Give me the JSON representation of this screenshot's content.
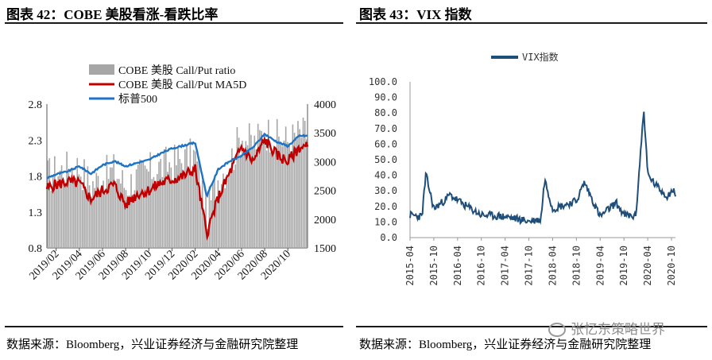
{
  "left_title": "图表 42：COBE 美股看涨-看跌比率",
  "right_title": "图表 43：VIX 指数",
  "left_source": "数据来源：Bloomberg，兴业证券经济与金融研究院整理",
  "right_source": "数据来源：Bloomberg，兴业证券经济与金融研究院整理",
  "watermark": "张忆东策略世界",
  "colors": {
    "bar": "#a6a6a6",
    "ma5d": "#c00000",
    "spx": "#1f73c4",
    "vix": "#1f4e79"
  },
  "chart_data": [
    {
      "type": "bar",
      "title": "图表 42：COBE 美股看涨-看跌比率",
      "legend": [
        "COBE 美股 Call/Put ratio",
        "COBE 美股 Call/Put MA5D",
        "标普500"
      ],
      "legend_position": "top-left",
      "x_ticks": [
        "2019/02",
        "2019/04",
        "2019/06",
        "2019/08",
        "2019/10",
        "2019/12",
        "2020/02",
        "2020/04",
        "2020/06",
        "2020/08",
        "2020/10"
      ],
      "y_left_ticks": [
        "0.8",
        "1.3",
        "1.8",
        "2.3",
        "2.8"
      ],
      "y_left_lim": [
        0.8,
        2.8
      ],
      "y_right_ticks": [
        "1500",
        "2000",
        "2500",
        "3000",
        "3500",
        "4000"
      ],
      "y_right_lim": [
        1500,
        4000
      ],
      "series": [
        {
          "name": "COBE 美股 Call/Put ratio",
          "type": "bar",
          "axis": "left",
          "x": [
            "2019/01",
            "2019/02",
            "2019/03",
            "2019/04",
            "2019/05",
            "2019/06",
            "2019/07",
            "2019/08",
            "2019/09",
            "2019/10",
            "2019/11",
            "2019/12",
            "2020/01",
            "2020/02",
            "2020/03",
            "2020/04",
            "2020/05",
            "2020/06",
            "2020/07",
            "2020/08",
            "2020/09",
            "2020/10",
            "2020/11"
          ],
          "values": [
            1.7,
            1.78,
            1.82,
            1.85,
            1.6,
            1.7,
            1.8,
            1.58,
            1.7,
            1.78,
            1.85,
            1.9,
            1.95,
            2.0,
            1.2,
            1.7,
            1.9,
            2.3,
            2.15,
            2.35,
            2.25,
            2.2,
            2.3
          ]
        },
        {
          "name": "COBE 美股 Call/Put MA5D",
          "type": "line",
          "axis": "left",
          "x": [
            "2019/01",
            "2019/02",
            "2019/03",
            "2019/04",
            "2019/05",
            "2019/06",
            "2019/07",
            "2019/08",
            "2019/09",
            "2019/10",
            "2019/11",
            "2019/12",
            "2020/01",
            "2020/02",
            "2020/03",
            "2020/04",
            "2020/05",
            "2020/06",
            "2020/07",
            "2020/08",
            "2020/09",
            "2020/10",
            "2020/11"
          ],
          "values": [
            1.62,
            1.68,
            1.72,
            1.7,
            1.48,
            1.6,
            1.68,
            1.4,
            1.55,
            1.6,
            1.7,
            1.75,
            1.8,
            1.9,
            1.0,
            1.5,
            1.85,
            2.2,
            2.0,
            2.3,
            2.1,
            2.0,
            2.2
          ]
        },
        {
          "name": "标普500",
          "type": "line",
          "axis": "right",
          "x": [
            "2019/01",
            "2019/02",
            "2019/03",
            "2019/04",
            "2019/05",
            "2019/06",
            "2019/07",
            "2019/08",
            "2019/09",
            "2019/10",
            "2019/11",
            "2019/12",
            "2020/01",
            "2020/02",
            "2020/03",
            "2020/04",
            "2020/05",
            "2020/06",
            "2020/07",
            "2020/08",
            "2020/09",
            "2020/10",
            "2020/11"
          ],
          "values": [
            2700,
            2780,
            2830,
            2920,
            2790,
            2940,
            3010,
            2920,
            2980,
            3030,
            3140,
            3230,
            3280,
            3330,
            2400,
            2870,
            3010,
            3100,
            3250,
            3480,
            3350,
            3270,
            3450
          ]
        }
      ]
    },
    {
      "type": "line",
      "title": "图表 43：VIX 指数",
      "legend": [
        "VIX指数"
      ],
      "legend_position": "top",
      "x_ticks": [
        "2015-04",
        "2015-10",
        "2016-04",
        "2016-10",
        "2017-04",
        "2017-10",
        "2018-04",
        "2018-10",
        "2019-04",
        "2019-10",
        "2020-04",
        "2020-10"
      ],
      "ylim": [
        0,
        100
      ],
      "y_ticks": [
        "0.0",
        "10.0",
        "20.0",
        "30.0",
        "40.0",
        "50.0",
        "60.0",
        "70.0",
        "80.0",
        "90.0",
        "100.0"
      ],
      "series": [
        {
          "name": "VIX指数",
          "x": [
            "2015-04",
            "2015-07",
            "2015-08",
            "2015-10",
            "2016-01",
            "2016-02",
            "2016-06",
            "2016-10",
            "2017-04",
            "2017-10",
            "2018-01",
            "2018-02",
            "2018-04",
            "2018-10",
            "2018-12",
            "2019-04",
            "2019-08",
            "2019-10",
            "2020-01",
            "2020-03",
            "2020-04",
            "2020-06",
            "2020-09",
            "2020-10",
            "2020-11"
          ],
          "values": [
            14,
            13,
            40,
            18,
            24,
            27,
            20,
            14,
            13,
            10,
            11,
            37,
            18,
            23,
            35,
            13,
            22,
            14,
            13,
            82,
            40,
            33,
            26,
            30,
            28
          ]
        }
      ]
    }
  ]
}
